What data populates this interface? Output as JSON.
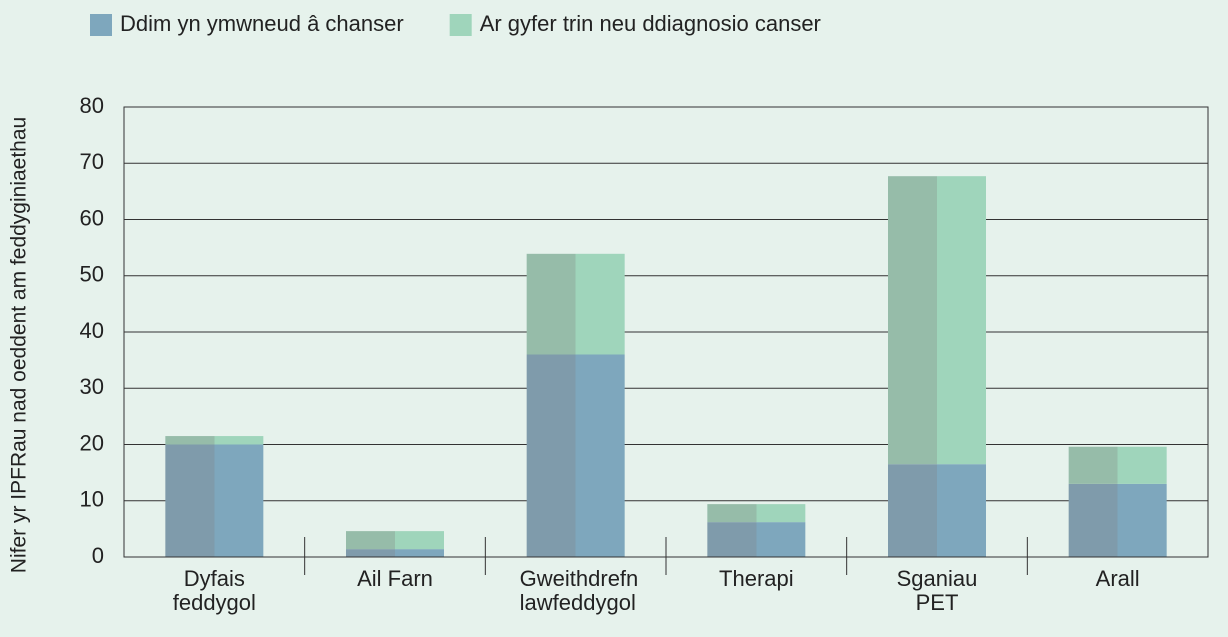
{
  "chart_data": {
    "type": "stacked_bar",
    "y_label": "Nifer yr IPFRau nad oeddent am feddyginiaethau",
    "categories": [
      "Dyfais feddygol",
      "Ail Farn",
      "Gweithdrefn lawfeddygol",
      "Therapi",
      "Sganiau PET",
      "Arall"
    ],
    "series": [
      {
        "name": "Ddim yn ymwneud â chanser",
        "color": "#7ea7bd",
        "values": [
          20,
          1.4,
          36,
          6.2,
          16.5,
          13
        ]
      },
      {
        "name": "Ar gyfer trin neu ddiagnosio canser",
        "color": "#9fd5bb",
        "values": [
          1.5,
          3.2,
          17.9,
          3.2,
          51.2,
          6.6
        ]
      }
    ],
    "ylim": [
      0,
      80
    ],
    "yticks": [
      0,
      10,
      20,
      30,
      40,
      50,
      60,
      70,
      80
    ],
    "grid": true,
    "legend": "top"
  }
}
